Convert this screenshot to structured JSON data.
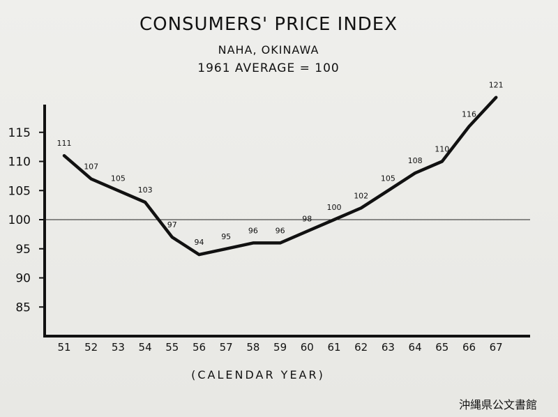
{
  "chart_data": {
    "type": "line",
    "title": "CONSUMERS' PRICE INDEX",
    "subtitle_location": "NAHA, OKINAWA",
    "subtitle_base": "1961 AVERAGE = 100",
    "xlabel": "(CALENDAR YEAR)",
    "ylabel": "",
    "x": [
      "51",
      "52",
      "53",
      "54",
      "55",
      "56",
      "57",
      "58",
      "59",
      "60",
      "61",
      "62",
      "63",
      "64",
      "65",
      "66",
      "67"
    ],
    "values": [
      111,
      107,
      105,
      103,
      97,
      94,
      95,
      96,
      96,
      98,
      100,
      102,
      105,
      108,
      110,
      116,
      121
    ],
    "point_labels": [
      "111",
      "107",
      "105",
      "103",
      "97",
      "94",
      "95",
      "96",
      "96",
      "98",
      "100",
      "102",
      "105",
      "108",
      "110",
      "116",
      "121"
    ],
    "y_ticks": [
      85,
      90,
      95,
      100,
      105,
      110,
      115
    ],
    "y_tick_labels": [
      "85",
      "90",
      "95",
      "100",
      "105",
      "110",
      "115"
    ],
    "ylim": [
      80,
      120
    ],
    "reference_line": 100,
    "grid": false,
    "line_color": "#111111"
  },
  "archive_stamp": "沖縄県公文書館"
}
